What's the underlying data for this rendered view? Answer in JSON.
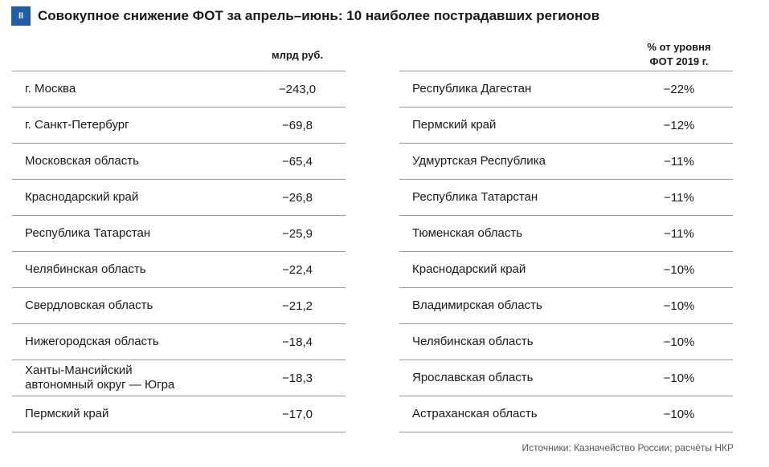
{
  "header": {
    "badge": "II",
    "title": "Совокупное снижение ФОТ за апрель–июнь: 10 наиболее пострадавших регионов"
  },
  "left_table": {
    "column_header": "млрд руб.",
    "rows": [
      [
        "г. Москва",
        "−243,0"
      ],
      [
        "г. Санкт-Петербург",
        "−69,8"
      ],
      [
        "Московская область",
        "−65,4"
      ],
      [
        "Краснодарский край",
        "−26,8"
      ],
      [
        "Республика Татарстан",
        "−25,9"
      ],
      [
        "Челябинская область",
        "−22,4"
      ],
      [
        "Свердловская область",
        "−21,2"
      ],
      [
        "Нижегородская область",
        "−18,4"
      ],
      [
        "Ханты-Мансийский автономный округ — Югра",
        "−18,3"
      ],
      [
        "Пермский край",
        "−17,0"
      ]
    ]
  },
  "right_table": {
    "column_header": "% от уровня\nФОТ 2019 г.",
    "rows": [
      [
        "Республика Дагестан",
        "−22%"
      ],
      [
        "Пермский край",
        "−12%"
      ],
      [
        "Удмуртская Республика",
        "−11%"
      ],
      [
        "Республика Татарстан",
        "−11%"
      ],
      [
        "Тюменская область",
        "−11%"
      ],
      [
        "Краснодарский край",
        "−10%"
      ],
      [
        "Владимирская область",
        "−10%"
      ],
      [
        "Челябинская область",
        "−10%"
      ],
      [
        "Ярославская область",
        "−10%"
      ],
      [
        "Астраханская область",
        "−10%"
      ]
    ]
  },
  "source": "Источники: Казначейство России; расчёты НКР"
}
